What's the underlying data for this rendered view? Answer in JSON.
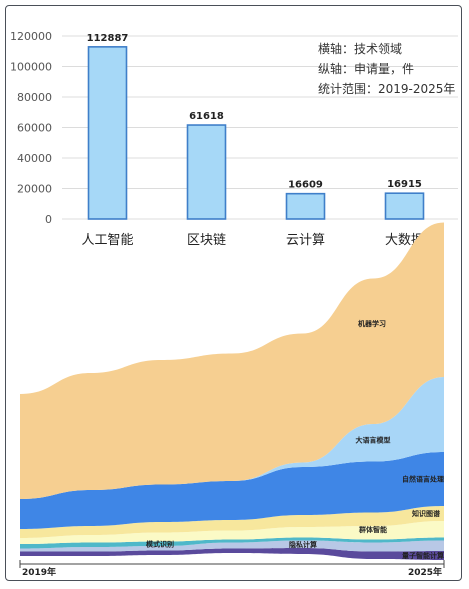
{
  "chart_data": [
    {
      "type": "bar",
      "categories": [
        "人工智能",
        "区块链",
        "云计算",
        "大数据"
      ],
      "values": [
        112887,
        61618,
        16609,
        16915
      ],
      "ylim": [
        0,
        120000
      ],
      "yticks": [
        0,
        20000,
        40000,
        60000,
        80000,
        100000,
        120000
      ],
      "grid": true,
      "bar_color": "#a6d8f7",
      "bar_edge_color": "#3f7fc9",
      "notes": [
        "横轴：技术领域",
        "纵轴：申请量，件",
        "统计范围：2019-2025年"
      ]
    },
    {
      "type": "area",
      "x": [
        "2019",
        "2020",
        "2021",
        "2022",
        "2023",
        "2024",
        "2025"
      ],
      "x_tick_labels": [
        "2019年",
        "2025年"
      ],
      "series": [
        {
          "name": "量子智能计算",
          "color": "#5a4a9c",
          "values": [
            3,
            3,
            3,
            3,
            4,
            5,
            6
          ]
        },
        {
          "name": "隐私计算",
          "color": "#b8c8e6",
          "values": [
            2,
            3,
            3,
            4,
            5,
            6,
            7
          ]
        },
        {
          "name": "模式识别",
          "color": "#4fb8c9",
          "values": [
            3,
            3,
            3,
            2,
            2,
            2,
            2
          ]
        },
        {
          "name": "群体智能",
          "color": "#fbfac6",
          "values": [
            4,
            5,
            6,
            6,
            7,
            9,
            11
          ]
        },
        {
          "name": "知识图谱",
          "color": "#f7e79d",
          "values": [
            6,
            6,
            7,
            7,
            8,
            9,
            10
          ]
        },
        {
          "name": "自然语言处理",
          "color": "#3f86e6",
          "values": [
            20,
            24,
            25,
            26,
            32,
            34,
            36
          ]
        },
        {
          "name": "大语言模型",
          "color": "#a8d6f7",
          "values": [
            0,
            0,
            0,
            0,
            3,
            25,
            50
          ]
        },
        {
          "name": "机器学习",
          "color": "#f6cf91",
          "values": [
            70,
            78,
            83,
            85,
            86,
            97,
            103
          ]
        }
      ]
    }
  ]
}
